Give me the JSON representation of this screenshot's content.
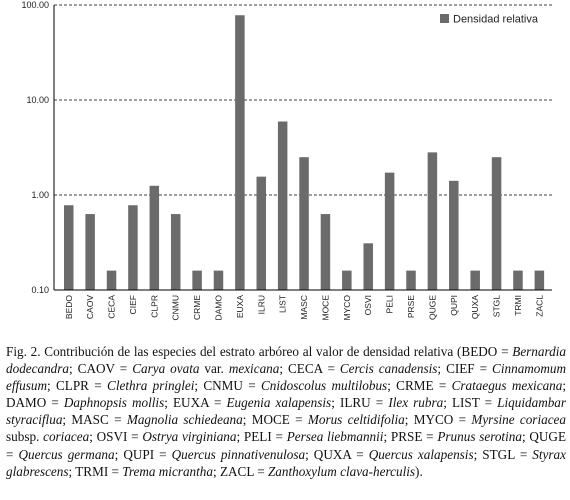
{
  "chart_data": {
    "type": "bar",
    "y_scale": "log",
    "ylim": [
      0.1,
      100
    ],
    "y_ticks": [
      "0.10",
      "1.00",
      "10.00",
      "100.00"
    ],
    "grid": "horizontal-dashed",
    "legend": "top-right",
    "bar_color": "#6b6b6b",
    "series": [
      {
        "name": "Densidad relativa",
        "values": [
          0.78,
          0.63,
          0.16,
          0.78,
          1.25,
          0.63,
          0.16,
          0.16,
          78.0,
          1.56,
          5.94,
          2.5,
          0.63,
          0.16,
          0.31,
          1.72,
          0.16,
          2.81,
          1.41,
          0.16,
          2.5,
          0.16,
          0.16
        ]
      }
    ],
    "categories": [
      "BEDO",
      "CAOV",
      "CECA",
      "CIEF",
      "CLPR",
      "CNMU",
      "CRME",
      "DAMO",
      "EUXA",
      "ILRU",
      "LIST",
      "MASC",
      "MOCE",
      "MYCO",
      "OSVI",
      "PELI",
      "PRSE",
      "QUGE",
      "QUPI",
      "QUXA",
      "STGL",
      "TRMI",
      "ZACL"
    ]
  },
  "caption": {
    "prefix": "Fig. 2. Contribución de las especies del estrato arbóreo al valor de densidad relativa (",
    "entries": [
      {
        "code": "BEDO",
        "name": "Bernardia dodecandra"
      },
      {
        "code": "CAOV",
        "name": "Carya ovata",
        "suffix": " var. ",
        "name2": "mexicana"
      },
      {
        "code": "CECA",
        "name": "Cercis canadensis"
      },
      {
        "code": "CIEF",
        "name": "Cinnamomum effusum"
      },
      {
        "code": "CLPR",
        "name": "Clethra pringlei"
      },
      {
        "code": "CNMU",
        "name": "Cnidoscolus multilobus"
      },
      {
        "code": "CRME",
        "name": "Crataegus mexicana"
      },
      {
        "code": "DAMO",
        "name": "Daphnopsis mollis"
      },
      {
        "code": "EUXA",
        "name": "Eugenia xalapensis"
      },
      {
        "code": "ILRU",
        "name": "Ilex rubra"
      },
      {
        "code": "LIST",
        "name": "Liquidambar styraciflua"
      },
      {
        "code": "MASC",
        "name": "Magnolia schiedeana"
      },
      {
        "code": "MOCE",
        "name": "Morus celtidifolia"
      },
      {
        "code": "MYCO",
        "name": "Myrsine coriacea",
        "suffix": " subsp. ",
        "name2": "coriacea"
      },
      {
        "code": "OSVI",
        "name": "Ostrya virginiana"
      },
      {
        "code": "PELI",
        "name": "Persea liebmannii"
      },
      {
        "code": "PRSE",
        "name": "Prunus serotina"
      },
      {
        "code": "QUGE",
        "name": "Quercus germana"
      },
      {
        "code": "QUPI",
        "name": "Quercus pinnativenulosa"
      },
      {
        "code": "QUXA",
        "name": "Quercus xalapensis"
      },
      {
        "code": "STGL",
        "name": "Styrax glabrescens"
      },
      {
        "code": "TRMI",
        "name": "Trema micrantha"
      },
      {
        "code": "ZACL",
        "name": "Zanthoxylum clava-herculis"
      }
    ],
    "suffix": ")."
  }
}
